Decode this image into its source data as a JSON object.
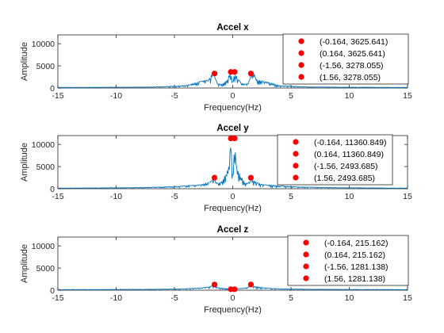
{
  "chart_data": [
    {
      "type": "line",
      "title": "Accel x",
      "xlabel": "Frequency(Hz)",
      "ylabel": "Amplitude",
      "xlim": [
        -15,
        15
      ],
      "ylim": [
        0,
        12000
      ],
      "xticks": [
        -15,
        -10,
        -5,
        0,
        5,
        10,
        15
      ],
      "yticks": [
        0,
        5000,
        10000
      ],
      "ytick_labels": [
        "0",
        "5000",
        "10000"
      ],
      "legend_position": "top-right",
      "series": [
        {
          "style": "spectrum",
          "color": "#0072BD",
          "x": [
            -15,
            -12,
            -9,
            -7,
            -6,
            -5,
            -4,
            -3.6,
            -3.2,
            -2.8,
            -2.5,
            -2.2,
            -2.0,
            -1.9,
            -1.8,
            -1.7,
            -1.6,
            -1.56,
            -1.5,
            -1.4,
            -1.3,
            -1.2,
            -1.0,
            -0.8,
            -0.6,
            -0.4,
            -0.3,
            -0.2,
            -0.164,
            -0.1,
            0,
            0.1,
            0.164,
            0.2,
            0.3,
            0.4,
            0.6,
            0.8,
            1.0,
            1.2,
            1.3,
            1.4,
            1.5,
            1.56,
            1.6,
            1.7,
            1.8,
            1.9,
            2.0,
            2.2,
            2.5,
            2.8,
            3.2,
            3.6,
            4,
            5,
            6,
            7,
            9,
            12,
            15
          ],
          "y": [
            150,
            180,
            200,
            250,
            300,
            450,
            600,
            900,
            1200,
            1500,
            1700,
            1900,
            2100,
            2800,
            3300,
            3500,
            3400,
            3278,
            2500,
            1600,
            1200,
            1000,
            900,
            1100,
            1600,
            2300,
            3100,
            3500,
            3626,
            3000,
            1500,
            3000,
            3626,
            3500,
            3100,
            2300,
            1600,
            1100,
            900,
            1000,
            1200,
            1600,
            2500,
            3278,
            3400,
            3500,
            3300,
            2800,
            2100,
            1900,
            1700,
            1500,
            1200,
            900,
            600,
            450,
            300,
            250,
            200,
            180,
            150
          ]
        },
        {
          "style": "markers",
          "color": "#FF0000",
          "x": [
            -0.164,
            0.164,
            -1.56,
            1.56
          ],
          "y": [
            3625.641,
            3625.641,
            3278.055,
            3278.055
          ]
        }
      ],
      "legend": [
        "(-0.164, 3625.641)",
        "(0.164, 3625.641)",
        "(-1.56, 3278.055)",
        "(1.56, 3278.055)"
      ]
    },
    {
      "type": "line",
      "title": "Accel y",
      "xlabel": "Frequency(Hz)",
      "ylabel": "Amplitude",
      "xlim": [
        -15,
        15
      ],
      "ylim": [
        0,
        12000
      ],
      "xticks": [
        -15,
        -10,
        -5,
        0,
        5,
        10,
        15
      ],
      "yticks": [
        0,
        5000,
        10000
      ],
      "ytick_labels": [
        "0",
        "5000",
        "10000"
      ],
      "legend_position": "top-right",
      "series": [
        {
          "style": "spectrum",
          "color": "#0072BD",
          "x": [
            -15,
            -12,
            -9,
            -7,
            -5,
            -4,
            -3,
            -2.5,
            -2.0,
            -1.8,
            -1.6,
            -1.56,
            -1.5,
            -1.3,
            -1.0,
            -0.8,
            -0.6,
            -0.4,
            -0.3,
            -0.2,
            -0.164,
            -0.1,
            0,
            0.1,
            0.164,
            0.2,
            0.3,
            0.4,
            0.6,
            0.8,
            1.0,
            1.3,
            1.5,
            1.56,
            1.6,
            1.8,
            2.0,
            2.5,
            3,
            4,
            5,
            7,
            9,
            12,
            15
          ],
          "y": [
            150,
            200,
            250,
            350,
            500,
            700,
            900,
            1100,
            1500,
            1900,
            2400,
            2494,
            2000,
            1200,
            1500,
            2500,
            3500,
            4500,
            6500,
            10000,
            11361,
            8000,
            3500,
            8000,
            11361,
            10000,
            6500,
            4500,
            3500,
            2500,
            1500,
            1200,
            2000,
            2494,
            2400,
            1900,
            1500,
            1100,
            900,
            700,
            500,
            350,
            250,
            200,
            150
          ]
        },
        {
          "style": "markers",
          "color": "#FF0000",
          "x": [
            -0.164,
            0.164,
            -1.56,
            1.56
          ],
          "y": [
            11360.849,
            11360.849,
            2493.685,
            2493.685
          ]
        }
      ],
      "legend": [
        "(-0.164, 11360.849)",
        "(0.164, 11360.849)",
        "(-1.56, 2493.685)",
        "(1.56, 2493.685)"
      ]
    },
    {
      "type": "line",
      "title": "Accel z",
      "xlabel": "Frequency(Hz)",
      "ylabel": "Amplitude",
      "xlim": [
        -15,
        15
      ],
      "ylim": [
        0,
        12000
      ],
      "xticks": [
        -15,
        -10,
        -5,
        0,
        5,
        10,
        15
      ],
      "yticks": [
        0,
        5000,
        10000
      ],
      "ytick_labels": [
        "0",
        "5000",
        "10000"
      ],
      "legend_position": "top-right",
      "series": [
        {
          "style": "spectrum",
          "color": "#0072BD",
          "x": [
            -15,
            -10,
            -6,
            -4,
            -3,
            -2.5,
            -2,
            -1.8,
            -1.6,
            -1.56,
            -1.5,
            -1.2,
            -0.8,
            -0.4,
            -0.164,
            0,
            0.164,
            0.4,
            0.8,
            1.2,
            1.5,
            1.56,
            1.6,
            1.8,
            2,
            2.5,
            3,
            4,
            6,
            10,
            15
          ],
          "y": [
            150,
            180,
            250,
            350,
            500,
            650,
            850,
            1000,
            1200,
            1281,
            1000,
            600,
            450,
            350,
            215,
            500,
            215,
            350,
            450,
            600,
            1000,
            1281,
            1200,
            1000,
            850,
            650,
            500,
            350,
            250,
            180,
            150
          ]
        },
        {
          "style": "markers",
          "color": "#FF0000",
          "x": [
            -0.164,
            0.164,
            -1.56,
            1.56
          ],
          "y": [
            215.162,
            215.162,
            1281.138,
            1281.138
          ]
        }
      ],
      "legend": [
        "(-0.164, 215.162)",
        "(0.164, 215.162)",
        "(-1.56, 1281.138)",
        "(1.56, 1281.138)"
      ]
    }
  ]
}
